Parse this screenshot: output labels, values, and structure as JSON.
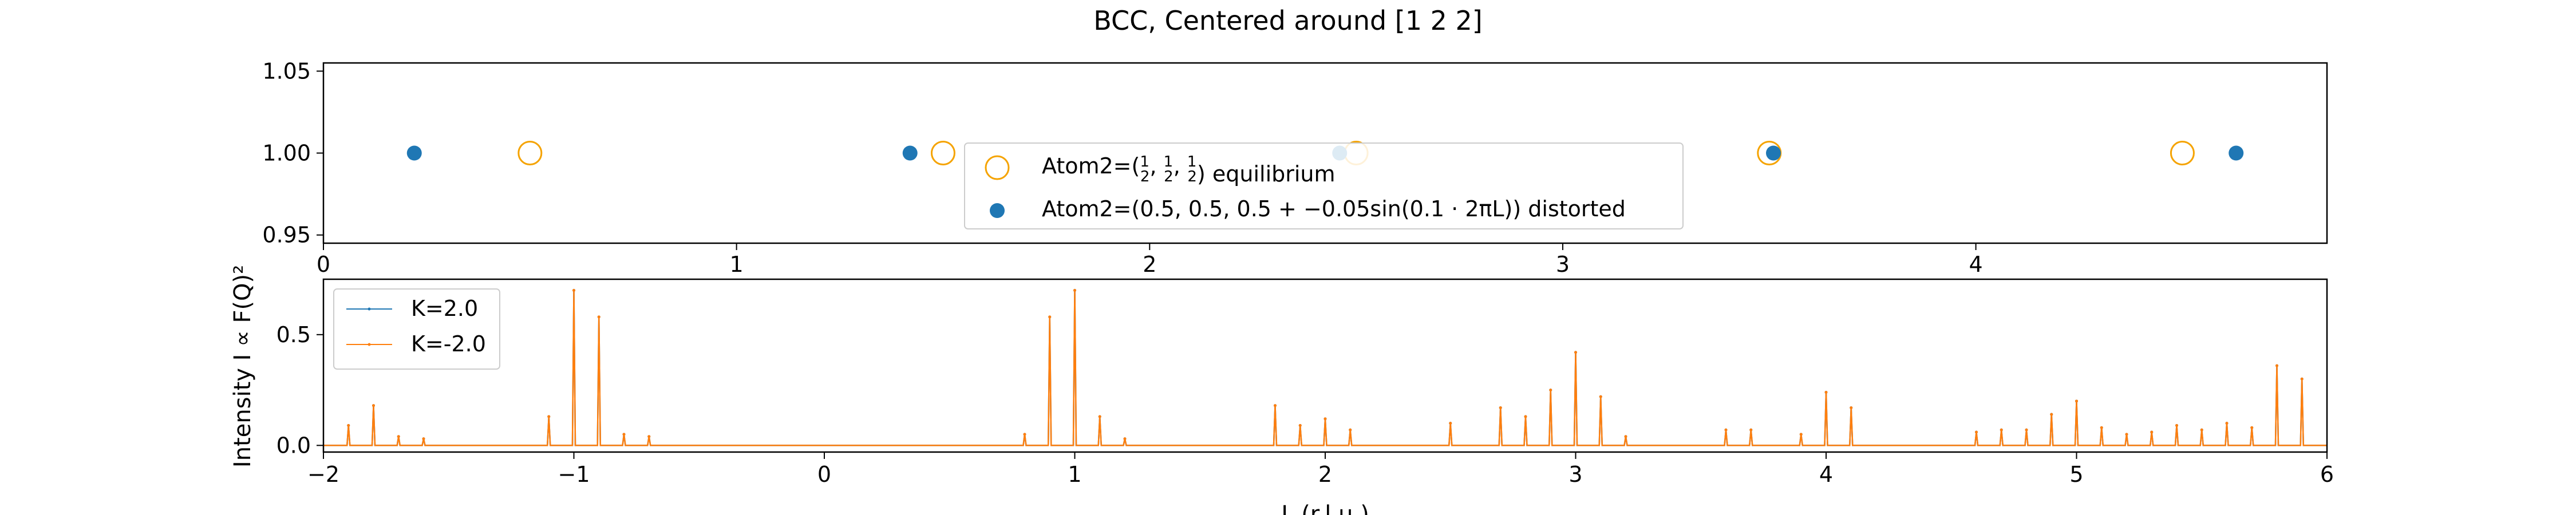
{
  "figure": {
    "title": "BCC, Centered around [1 2 2]"
  },
  "colors": {
    "equilibrium": "#f5a300",
    "distorted": "#1f77b4",
    "k_pos": "#1f77b4",
    "k_neg": "#ff7f0e"
  },
  "chart_data": [
    {
      "type": "scatter",
      "title": "BCC, Centered around [1 2 2]",
      "xlim": [
        0,
        4.85
      ],
      "ylim": [
        0.945,
        1.055
      ],
      "xticks": [
        "0",
        "1",
        "2",
        "3",
        "4"
      ],
      "yticks": [
        "1.05",
        "1.00",
        "0.95"
      ],
      "legend_position": "center",
      "series": [
        {
          "name": "Atom2=(½, ½, ½) equilibrium",
          "label_prefix": "Atom2=(",
          "label_frac": "1/2",
          "label_suffix": ") equilibrium",
          "marker": "open-circle",
          "x": [
            0.5,
            1.5,
            2.5,
            3.5,
            4.5
          ],
          "y": [
            1.0,
            1.0,
            1.0,
            1.0,
            1.0
          ]
        },
        {
          "name": "Atom2=(0.5, 0.5, 0.5 + −0.05sin(0.1·2πL)) distorted",
          "label_text": "Atom2=(0.5, 0.5, 0.5 + −0.05sin(0.1 · 2πL)) distorted",
          "marker": "filled-circle",
          "x": [
            0.22,
            1.42,
            2.46,
            3.51,
            4.63
          ],
          "y": [
            1.0,
            1.0,
            1.0,
            1.0,
            1.0
          ]
        }
      ]
    },
    {
      "type": "line",
      "xlabel": "L (r.l.u.)",
      "ylabel": "Intensity I ∝ F(Q)²",
      "xlim": [
        -2,
        6
      ],
      "ylim": [
        -0.03,
        0.75
      ],
      "xticks": [
        "−2",
        "−1",
        "0",
        "1",
        "2",
        "3",
        "4",
        "5",
        "6"
      ],
      "yticks": [
        "0.0",
        "0.5"
      ],
      "legend_position": "upper left",
      "series": [
        {
          "name": "K=2.0",
          "x": [
            -1.9,
            -1.8,
            -1.7,
            -1.6,
            -1.1,
            -1.0,
            -0.9,
            -0.8,
            -0.7,
            0.8,
            0.9,
            1.0,
            1.1,
            1.2,
            1.8,
            1.9,
            2.0,
            2.1,
            2.5,
            2.7,
            2.8,
            2.9,
            3.0,
            3.1,
            3.2,
            3.6,
            3.7,
            3.9,
            4.0,
            4.1,
            4.6,
            4.7,
            4.8,
            4.9,
            5.0,
            5.1,
            5.2,
            5.3,
            5.4,
            5.5,
            5.6,
            5.7,
            5.8,
            5.9
          ],
          "y": [
            0.09,
            0.18,
            0.04,
            0.03,
            0.13,
            0.7,
            0.58,
            0.05,
            0.04,
            0.05,
            0.58,
            0.7,
            0.13,
            0.03,
            0.18,
            0.09,
            0.12,
            0.07,
            0.1,
            0.17,
            0.13,
            0.25,
            0.42,
            0.22,
            0.04,
            0.07,
            0.07,
            0.05,
            0.24,
            0.17,
            0.06,
            0.07,
            0.07,
            0.14,
            0.2,
            0.08,
            0.05,
            0.06,
            0.09,
            0.07,
            0.1,
            0.08,
            0.36,
            0.3
          ]
        },
        {
          "name": "K=-2.0",
          "x": [
            -1.9,
            -1.8,
            -1.7,
            -1.6,
            -1.1,
            -1.0,
            -0.9,
            -0.8,
            -0.7,
            0.8,
            0.9,
            1.0,
            1.1,
            1.2,
            1.8,
            1.9,
            2.0,
            2.1,
            2.5,
            2.7,
            2.8,
            2.9,
            3.0,
            3.1,
            3.2,
            3.6,
            3.7,
            3.9,
            4.0,
            4.1,
            4.6,
            4.7,
            4.8,
            4.9,
            5.0,
            5.1,
            5.2,
            5.3,
            5.4,
            5.5,
            5.6,
            5.7,
            5.8,
            5.9
          ],
          "y": [
            0.09,
            0.18,
            0.04,
            0.03,
            0.13,
            0.7,
            0.58,
            0.05,
            0.04,
            0.05,
            0.58,
            0.7,
            0.13,
            0.03,
            0.18,
            0.09,
            0.12,
            0.07,
            0.1,
            0.17,
            0.13,
            0.25,
            0.42,
            0.22,
            0.04,
            0.07,
            0.07,
            0.05,
            0.24,
            0.17,
            0.06,
            0.07,
            0.07,
            0.14,
            0.2,
            0.08,
            0.05,
            0.06,
            0.09,
            0.07,
            0.1,
            0.08,
            0.36,
            0.3
          ]
        }
      ]
    }
  ]
}
